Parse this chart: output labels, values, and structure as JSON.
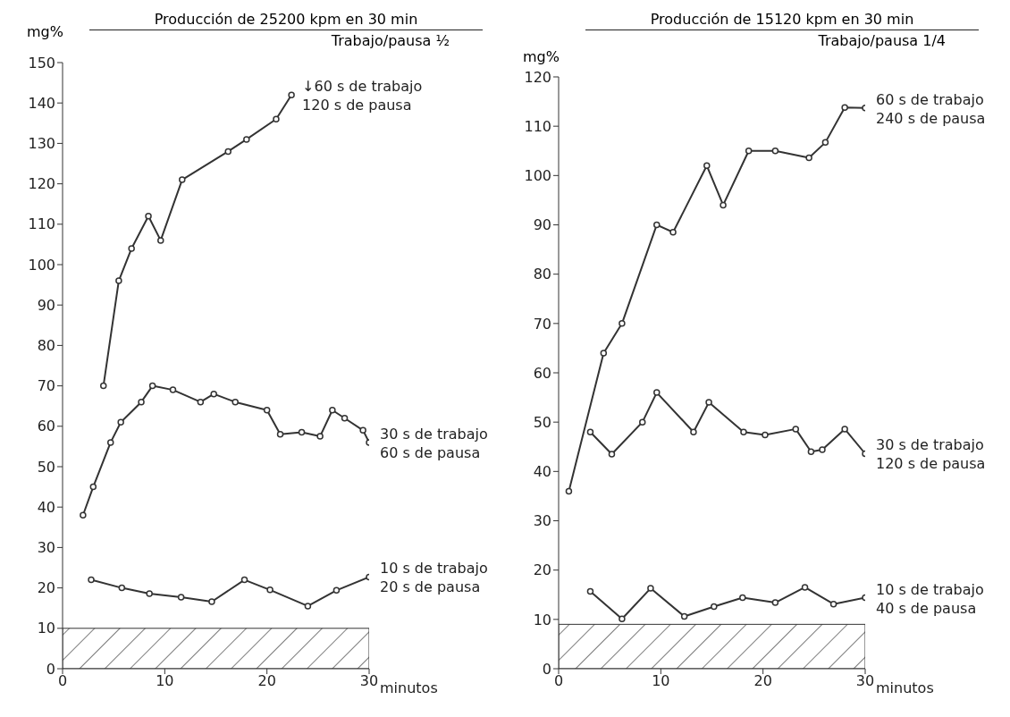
{
  "chart_data": [
    {
      "type": "line",
      "title": "Producción de 25200 kpm en 30 min",
      "subtitle": "Trabajo/pausa ½",
      "ylabel": "mg%",
      "xlabel": "minutos",
      "xlim": [
        0,
        30
      ],
      "xticks": [
        0,
        10,
        20,
        30
      ],
      "ylim": [
        0,
        150
      ],
      "yticks": [
        0,
        10,
        20,
        30,
        40,
        50,
        60,
        70,
        80,
        90,
        100,
        110,
        120,
        130,
        140,
        150
      ],
      "grid": false,
      "legend": false,
      "marker": "circle",
      "line_style": "solid",
      "bands": [
        {
          "axis": "y",
          "from": 0,
          "to": 10,
          "color": "#333333"
        }
      ],
      "series": [
        {
          "name": "↓60 s de trabajo\n120 s de pausa",
          "color": "#333333",
          "x": [
            4,
            5.5,
            6.75,
            8.4,
            9.6,
            11.7,
            16.2,
            18,
            20.9,
            22.4
          ],
          "values": [
            70,
            96,
            104,
            112,
            106,
            121,
            128,
            131,
            136,
            142
          ]
        },
        {
          "name": "30 s de trabajo\n60 s de pausa",
          "color": "#333333",
          "x": [
            2,
            3,
            4.7,
            5.7,
            7.7,
            8.8,
            10.8,
            13.5,
            14.8,
            16.9,
            20,
            21.3,
            23.4,
            25.2,
            26.4,
            27.6,
            29.4,
            30
          ],
          "values": [
            38,
            45,
            56,
            61,
            66,
            70,
            69,
            66,
            68,
            66,
            64,
            58,
            58.5,
            57.5,
            64,
            62,
            59,
            56
          ]
        },
        {
          "name": "10 s de trabajo\n20 s de pausa",
          "color": "#333333",
          "x": [
            2.8,
            5.8,
            8.5,
            11.6,
            14.6,
            17.8,
            20.3,
            24,
            26.8,
            30
          ],
          "values": [
            22,
            20,
            18.6,
            17.7,
            16.6,
            22,
            19.5,
            15.5,
            19.4,
            22.7
          ]
        }
      ]
    },
    {
      "type": "line",
      "title": "Producción de 15120 kpm en 30 min",
      "subtitle": "Trabajo/pausa 1/4",
      "ylabel": "mg%",
      "xlabel": "minutos",
      "xlim": [
        0,
        30
      ],
      "xticks": [
        0,
        10,
        20,
        30
      ],
      "ylim": [
        0,
        120
      ],
      "yticks": [
        0,
        10,
        20,
        30,
        40,
        50,
        60,
        70,
        80,
        90,
        100,
        110,
        120
      ],
      "grid": false,
      "legend": false,
      "marker": "circle",
      "line_style": "solid",
      "bands": [
        {
          "axis": "y",
          "from": 0,
          "to": 9,
          "color": "#333333"
        }
      ],
      "series": [
        {
          "name": "60 s de trabajo\n240 s de pausa",
          "color": "#333333",
          "x": [
            1,
            4.4,
            6.2,
            9.6,
            11.2,
            14.5,
            16.1,
            18.6,
            21.2,
            24.5,
            26.1,
            28,
            30
          ],
          "values": [
            36,
            64,
            70,
            90,
            88.5,
            102,
            94,
            105,
            105,
            103.6,
            106.7,
            113.8,
            113.7
          ]
        },
        {
          "name": "30 s de trabajo\n120 s de pausa",
          "color": "#333333",
          "x": [
            3.1,
            5.2,
            8.2,
            9.6,
            13.2,
            14.7,
            18.1,
            20.2,
            23.2,
            24.7,
            25.8,
            28,
            30
          ],
          "values": [
            48,
            43.5,
            50,
            56,
            48,
            54,
            48,
            47.4,
            48.6,
            44,
            44.4,
            48.6,
            43.6
          ]
        },
        {
          "name": "10 s de trabajo\n40 s de pausa",
          "color": "#333333",
          "x": [
            3.1,
            6.2,
            9,
            12.3,
            15.2,
            18,
            21.2,
            24.1,
            26.9,
            30
          ],
          "values": [
            15.7,
            10.1,
            16.3,
            10.6,
            12.6,
            14.4,
            13.4,
            16.5,
            13.1,
            14.4
          ]
        }
      ]
    }
  ]
}
